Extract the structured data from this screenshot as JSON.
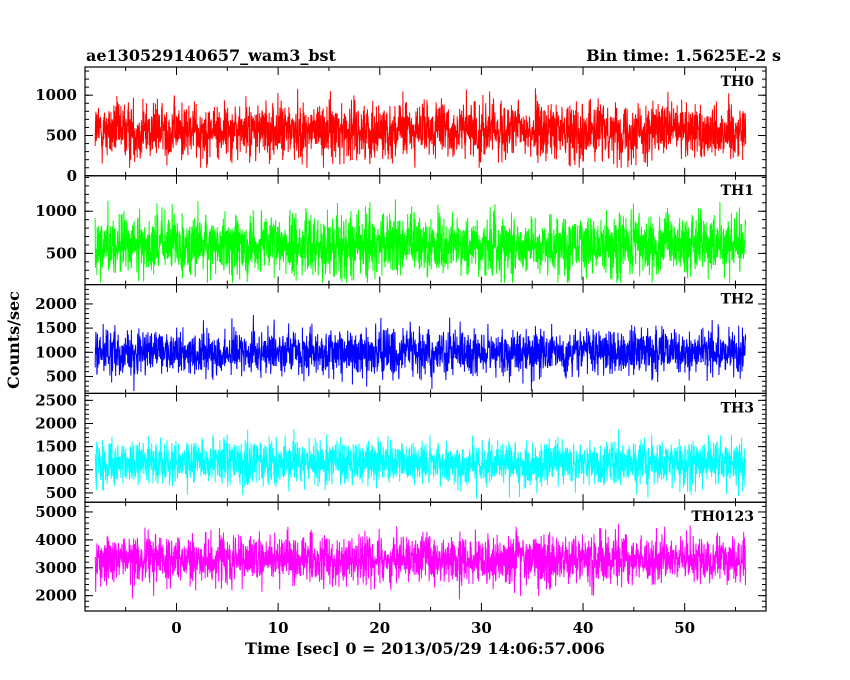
{
  "chart_data": {
    "type": "line",
    "title": "ae130529140657_wam3_bst",
    "subtitle": "Bin time: 1.5625E-2 s",
    "xlabel": "Time [sec] 0 = 2013/05/29 14:06:57.006",
    "ylabel": "Counts/sec",
    "xlim": [
      -9,
      58
    ],
    "data_range": [
      -8,
      56
    ],
    "x_ticks": [
      0,
      10,
      20,
      30,
      40,
      50
    ],
    "grid": false,
    "series": [
      {
        "name": "TH0",
        "color": "#ff0000",
        "ylim": [
          0,
          1350
        ],
        "y_ticks": [
          0,
          500,
          1000
        ],
        "mean": 560,
        "min": 100,
        "max": 1300,
        "sigma": 250
      },
      {
        "name": "TH1",
        "color": "#00ff00",
        "ylim": [
          130,
          1420
        ],
        "y_ticks": [
          500,
          1000
        ],
        "mean": 600,
        "min": 150,
        "max": 1420,
        "sigma": 260
      },
      {
        "name": "TH2",
        "color": "#0000ff",
        "ylim": [
          150,
          2400
        ],
        "y_ticks": [
          500,
          1000,
          1500,
          2000
        ],
        "mean": 1000,
        "min": 200,
        "max": 2300,
        "sigma": 330
      },
      {
        "name": "TH3",
        "color": "#00ffff",
        "ylim": [
          300,
          2650
        ],
        "y_ticks": [
          500,
          1000,
          1500,
          2000,
          2500
        ],
        "mean": 1150,
        "min": 350,
        "max": 2600,
        "sigma": 340
      },
      {
        "name": "TH0123",
        "color": "#ff00ff",
        "ylim": [
          1450,
          5350
        ],
        "y_ticks": [
          2000,
          3000,
          4000,
          5000
        ],
        "mean": 3300,
        "min": 1450,
        "max": 5200,
        "sigma": 620
      }
    ]
  }
}
